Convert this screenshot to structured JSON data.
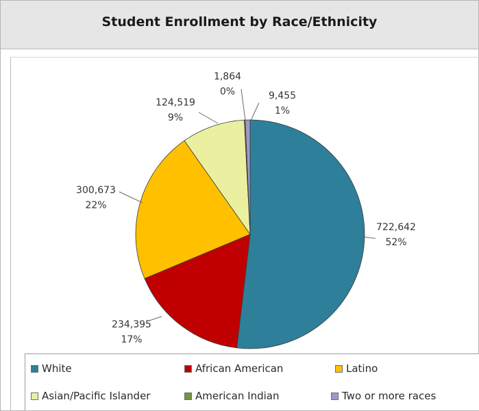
{
  "chart_data": {
    "type": "pie",
    "title": "Student Enrollment by Race/Ethnicity",
    "legend_position": "bottom",
    "slices": [
      {
        "name": "White",
        "value": 722642,
        "value_label": "722,642",
        "percent_label": "52%",
        "color": "#2e7f99"
      },
      {
        "name": "African American",
        "value": 234395,
        "value_label": "234,395",
        "percent_label": "17%",
        "color": "#c00000"
      },
      {
        "name": "Latino",
        "value": 300673,
        "value_label": "300,673",
        "percent_label": "22%",
        "color": "#ffc000"
      },
      {
        "name": "Asian/Pacific Islander",
        "value": 124519,
        "value_label": "124,519",
        "percent_label": "9%",
        "color": "#ebf0a0"
      },
      {
        "name": "American Indian",
        "value": 1864,
        "value_label": "1,864",
        "percent_label": "0%",
        "color": "#77933c"
      },
      {
        "name": "Two or more races",
        "value": 9455,
        "value_label": "9,455",
        "percent_label": "1%",
        "color": "#9e9ac8"
      }
    ]
  }
}
